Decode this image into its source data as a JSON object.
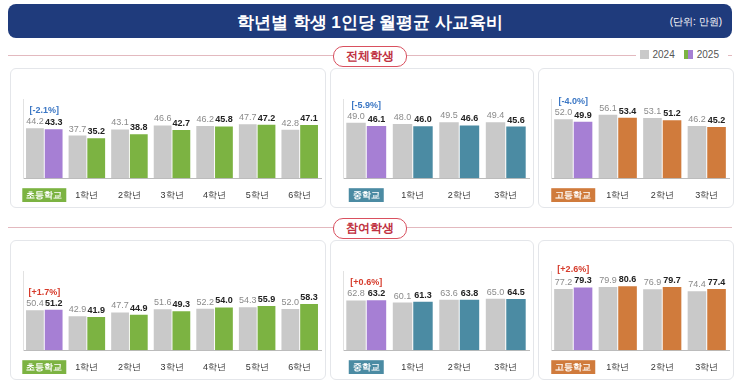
{
  "title": "학년별 학생 1인당 월평균 사교육비",
  "unit": "(단위: 만원)",
  "sections": [
    "전체학생",
    "참여학생"
  ],
  "chart_data": [
    {
      "type": "bar",
      "annotation": "[-2.1%]",
      "legend": "top-right",
      "categories": [
        "초등학교",
        "1학년",
        "2학년",
        "3학년",
        "4학년",
        "5학년",
        "6학년"
      ],
      "series": [
        {
          "name": "2024",
          "color": "#c9c9c9",
          "values": [
            44.2,
            37.7,
            43.1,
            46.6,
            46.2,
            47.7,
            42.8
          ],
          "value_labels": [
            "44.2",
            "37.7",
            "43.1",
            "46.6",
            "46.2",
            "47.7",
            "42.8"
          ]
        },
        {
          "name": "2025",
          "colors": [
            "#a67fd4",
            "#7cb342",
            "#7cb342",
            "#7cb342",
            "#7cb342",
            "#7cb342",
            "#7cb342"
          ],
          "values": [
            43.3,
            35.2,
            38.8,
            42.7,
            45.8,
            47.2,
            47.1
          ],
          "value_labels": [
            "43.3",
            "35.2",
            "38.8",
            "42.7",
            "45.8",
            "47.2",
            "47.1"
          ]
        }
      ],
      "ylim": [
        0,
        70
      ],
      "grid": false,
      "data_labels": true,
      "tick_labels": "x"
    },
    {
      "type": "bar",
      "annotation": "[-5.9%]",
      "categories": [
        "중학교",
        "1학년",
        "2학년",
        "3학년"
      ],
      "series": [
        {
          "name": "2024",
          "color": "#c9c9c9",
          "values": [
            49.0,
            48.0,
            49.5,
            49.4
          ],
          "value_labels": [
            "49.0",
            "48.0",
            "49.5",
            "49.4"
          ]
        },
        {
          "name": "2025",
          "colors": [
            "#a67fd4",
            "#4b8ba3",
            "#4b8ba3",
            "#4b8ba3"
          ],
          "values": [
            46.1,
            46.0,
            46.6,
            45.6
          ],
          "value_labels": [
            "46.1",
            "46.0",
            "46.6",
            "45.6"
          ]
        }
      ],
      "ylim": [
        0,
        70
      ],
      "grid": false,
      "data_labels": true,
      "tick_labels": "x"
    },
    {
      "type": "bar",
      "annotation": "[-4.0%]",
      "categories": [
        "고등학교",
        "1학년",
        "2학년",
        "3학년"
      ],
      "series": [
        {
          "name": "2024",
          "color": "#c9c9c9",
          "values": [
            52.0,
            56.1,
            53.1,
            46.2
          ],
          "value_labels": [
            "52.0",
            "56.1",
            "53.1",
            "46.2"
          ]
        },
        {
          "name": "2025",
          "colors": [
            "#a67fd4",
            "#d07b3c",
            "#d07b3c",
            "#d07b3c"
          ],
          "values": [
            49.9,
            53.4,
            51.2,
            45.2
          ],
          "value_labels": [
            "49.9",
            "53.4",
            "51.2",
            "45.2"
          ]
        }
      ],
      "ylim": [
        0,
        70
      ],
      "grid": false,
      "data_labels": true,
      "tick_labels": "x"
    },
    {
      "type": "bar",
      "annotation": "[+1.7%]",
      "categories": [
        "초등학교",
        "1학년",
        "2학년",
        "3학년",
        "4학년",
        "5학년",
        "6학년"
      ],
      "series": [
        {
          "name": "2024",
          "color": "#c9c9c9",
          "values": [
            50.4,
            42.9,
            47.7,
            51.6,
            52.2,
            54.3,
            52.0
          ],
          "value_labels": [
            "50.4",
            "42.9",
            "47.7",
            "51.6",
            "52.2",
            "54.3",
            "52.0"
          ]
        },
        {
          "name": "2025",
          "colors": [
            "#a67fd4",
            "#7cb342",
            "#7cb342",
            "#7cb342",
            "#7cb342",
            "#7cb342",
            "#7cb342"
          ],
          "values": [
            51.2,
            41.9,
            44.9,
            49.3,
            54.0,
            55.9,
            58.3
          ],
          "value_labels": [
            "51.2",
            "41.9",
            "44.9",
            "49.3",
            "54.0",
            "55.9",
            "58.3"
          ]
        }
      ],
      "ylim": [
        0,
        100
      ],
      "grid": false,
      "data_labels": true,
      "tick_labels": "x"
    },
    {
      "type": "bar",
      "annotation": "[+0.6%]",
      "categories": [
        "중학교",
        "1학년",
        "2학년",
        "3학년"
      ],
      "series": [
        {
          "name": "2024",
          "color": "#c9c9c9",
          "values": [
            62.8,
            60.1,
            63.6,
            65.0
          ],
          "value_labels": [
            "62.8",
            "60.1",
            "63.6",
            "65.0"
          ]
        },
        {
          "name": "2025",
          "colors": [
            "#a67fd4",
            "#4b8ba3",
            "#4b8ba3",
            "#4b8ba3"
          ],
          "values": [
            63.2,
            61.3,
            63.8,
            64.5
          ],
          "value_labels": [
            "63.2",
            "61.3",
            "63.8",
            "64.5"
          ]
        }
      ],
      "ylim": [
        0,
        100
      ],
      "grid": false,
      "data_labels": true,
      "tick_labels": "x"
    },
    {
      "type": "bar",
      "annotation": "[+2.6%]",
      "categories": [
        "고등학교",
        "1학년",
        "2학년",
        "3학년"
      ],
      "series": [
        {
          "name": "2024",
          "color": "#c9c9c9",
          "values": [
            77.2,
            79.9,
            76.9,
            74.4
          ],
          "value_labels": [
            "77.2",
            "79.9",
            "76.9",
            "74.4"
          ]
        },
        {
          "name": "2025",
          "colors": [
            "#a67fd4",
            "#d07b3c",
            "#d07b3c",
            "#d07b3c"
          ],
          "values": [
            79.3,
            80.6,
            79.7,
            77.4
          ],
          "value_labels": [
            "79.3",
            "80.6",
            "79.7",
            "77.4"
          ]
        }
      ],
      "ylim": [
        0,
        100
      ],
      "grid": false,
      "data_labels": true,
      "tick_labels": "x"
    }
  ]
}
